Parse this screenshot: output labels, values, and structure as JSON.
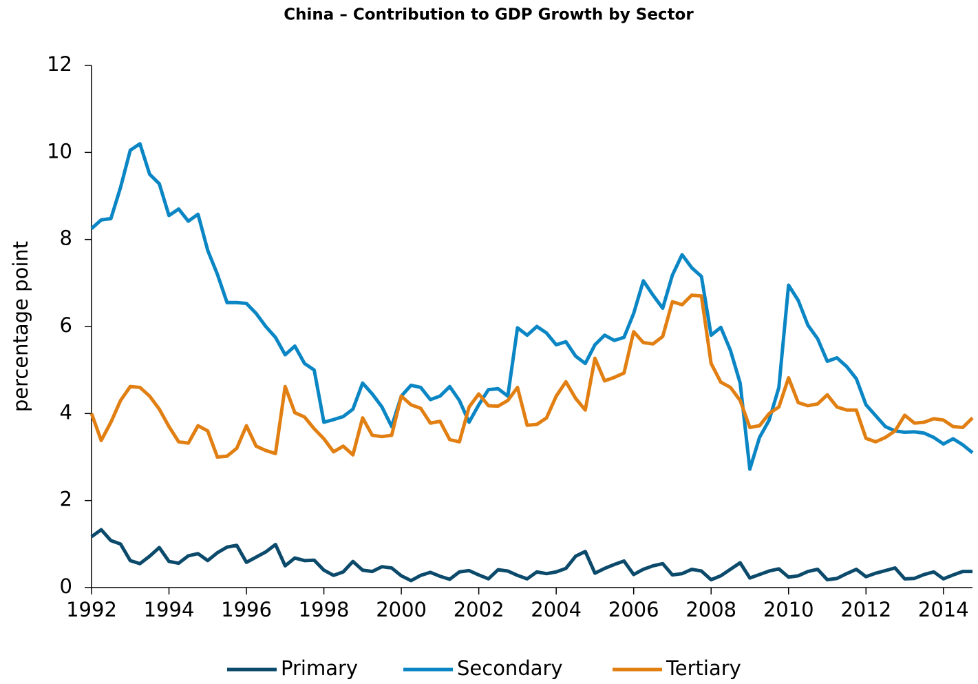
{
  "chart_data": {
    "type": "line",
    "title": "China – Contribution to GDP Growth by Sector",
    "ylabel": "percentage point",
    "x": [
      1992,
      1992.25,
      1992.5,
      1992.75,
      1993,
      1993.25,
      1993.5,
      1993.75,
      1994,
      1994.25,
      1994.5,
      1994.75,
      1995,
      1995.25,
      1995.5,
      1995.75,
      1996,
      1996.25,
      1996.5,
      1996.75,
      1997,
      1997.25,
      1997.5,
      1997.75,
      1998,
      1998.25,
      1998.5,
      1998.75,
      1999,
      1999.25,
      1999.5,
      1999.75,
      2000,
      2000.25,
      2000.5,
      2000.75,
      2001,
      2001.25,
      2001.5,
      2001.75,
      2002,
      2002.25,
      2002.5,
      2002.75,
      2003,
      2003.25,
      2003.5,
      2003.75,
      2004,
      2004.25,
      2004.5,
      2004.75,
      2005,
      2005.25,
      2005.5,
      2005.75,
      2006,
      2006.25,
      2006.5,
      2006.75,
      2007,
      2007.25,
      2007.5,
      2007.75,
      2008,
      2008.25,
      2008.5,
      2008.75,
      2009,
      2009.25,
      2009.5,
      2009.75,
      2010,
      2010.25,
      2010.5,
      2010.75,
      2011,
      2011.25,
      2011.5,
      2011.75,
      2012,
      2012.25,
      2012.5,
      2012.75,
      2013,
      2013.25,
      2013.5,
      2013.75,
      2014,
      2014.25,
      2014.5,
      2014.75
    ],
    "series": [
      {
        "name": "Primary",
        "color": "#0c4a6b",
        "values": [
          1.17,
          1.33,
          1.08,
          1.0,
          0.62,
          0.55,
          0.72,
          0.92,
          0.6,
          0.56,
          0.73,
          0.78,
          0.62,
          0.8,
          0.93,
          0.97,
          0.58,
          0.7,
          0.82,
          0.99,
          0.5,
          0.68,
          0.62,
          0.63,
          0.4,
          0.28,
          0.36,
          0.6,
          0.4,
          0.37,
          0.48,
          0.45,
          0.27,
          0.16,
          0.28,
          0.35,
          0.26,
          0.19,
          0.36,
          0.39,
          0.29,
          0.2,
          0.41,
          0.38,
          0.28,
          0.2,
          0.36,
          0.32,
          0.36,
          0.44,
          0.72,
          0.83,
          0.33,
          0.44,
          0.53,
          0.61,
          0.3,
          0.42,
          0.5,
          0.55,
          0.29,
          0.32,
          0.42,
          0.38,
          0.18,
          0.27,
          0.42,
          0.57,
          0.22,
          0.3,
          0.38,
          0.43,
          0.24,
          0.27,
          0.37,
          0.42,
          0.18,
          0.21,
          0.32,
          0.42,
          0.25,
          0.33,
          0.39,
          0.45,
          0.2,
          0.21,
          0.3,
          0.36,
          0.2,
          0.29,
          0.37,
          0.37
        ]
      },
      {
        "name": "Secondary",
        "color": "#0b86c4",
        "values": [
          8.25,
          8.45,
          8.48,
          9.2,
          10.05,
          10.2,
          9.5,
          9.28,
          8.55,
          8.7,
          8.42,
          8.58,
          7.75,
          7.2,
          6.55,
          6.55,
          6.53,
          6.3,
          6.0,
          5.75,
          5.35,
          5.55,
          5.15,
          5.0,
          3.8,
          3.86,
          3.93,
          4.1,
          4.7,
          4.45,
          4.15,
          3.7,
          4.4,
          4.65,
          4.6,
          4.32,
          4.4,
          4.62,
          4.3,
          3.8,
          4.2,
          4.55,
          4.57,
          4.4,
          5.97,
          5.8,
          6.0,
          5.85,
          5.58,
          5.65,
          5.32,
          5.15,
          5.58,
          5.8,
          5.68,
          5.75,
          6.3,
          7.05,
          6.72,
          6.42,
          7.18,
          7.65,
          7.35,
          7.15,
          5.8,
          5.98,
          5.45,
          4.7,
          2.72,
          3.45,
          3.85,
          4.6,
          6.95,
          6.6,
          6.03,
          5.72,
          5.2,
          5.28,
          5.08,
          4.8,
          4.2,
          3.95,
          3.7,
          3.6,
          3.57,
          3.58,
          3.55,
          3.45,
          3.3,
          3.42,
          3.28,
          3.1
        ]
      },
      {
        "name": "Tertiary",
        "color": "#e17f13",
        "values": [
          4.0,
          3.38,
          3.8,
          4.3,
          4.62,
          4.6,
          4.4,
          4.1,
          3.7,
          3.35,
          3.32,
          3.72,
          3.6,
          3.0,
          3.02,
          3.2,
          3.72,
          3.25,
          3.15,
          3.08,
          4.62,
          4.02,
          3.92,
          3.65,
          3.42,
          3.12,
          3.25,
          3.05,
          3.9,
          3.5,
          3.47,
          3.5,
          4.4,
          4.2,
          4.12,
          3.78,
          3.82,
          3.4,
          3.35,
          4.15,
          4.45,
          4.18,
          4.17,
          4.3,
          4.6,
          3.73,
          3.75,
          3.9,
          4.4,
          4.73,
          4.35,
          4.08,
          5.27,
          4.75,
          4.83,
          4.93,
          5.88,
          5.63,
          5.6,
          5.77,
          6.57,
          6.5,
          6.72,
          6.7,
          5.15,
          4.72,
          4.6,
          4.3,
          3.68,
          3.72,
          4.0,
          4.15,
          4.82,
          4.25,
          4.18,
          4.22,
          4.43,
          4.15,
          4.08,
          4.08,
          3.43,
          3.35,
          3.45,
          3.6,
          3.96,
          3.78,
          3.8,
          3.88,
          3.85,
          3.7,
          3.68,
          3.9
        ]
      }
    ],
    "xlim": [
      1992,
      2014.75
    ],
    "xticks": [
      1992,
      1994,
      1996,
      1998,
      2000,
      2002,
      2004,
      2006,
      2008,
      2010,
      2012,
      2014
    ],
    "ylim": [
      0,
      12
    ],
    "yticks": [
      0,
      2,
      4,
      6,
      8,
      10,
      12
    ],
    "grid": false,
    "legend": "bottom"
  }
}
